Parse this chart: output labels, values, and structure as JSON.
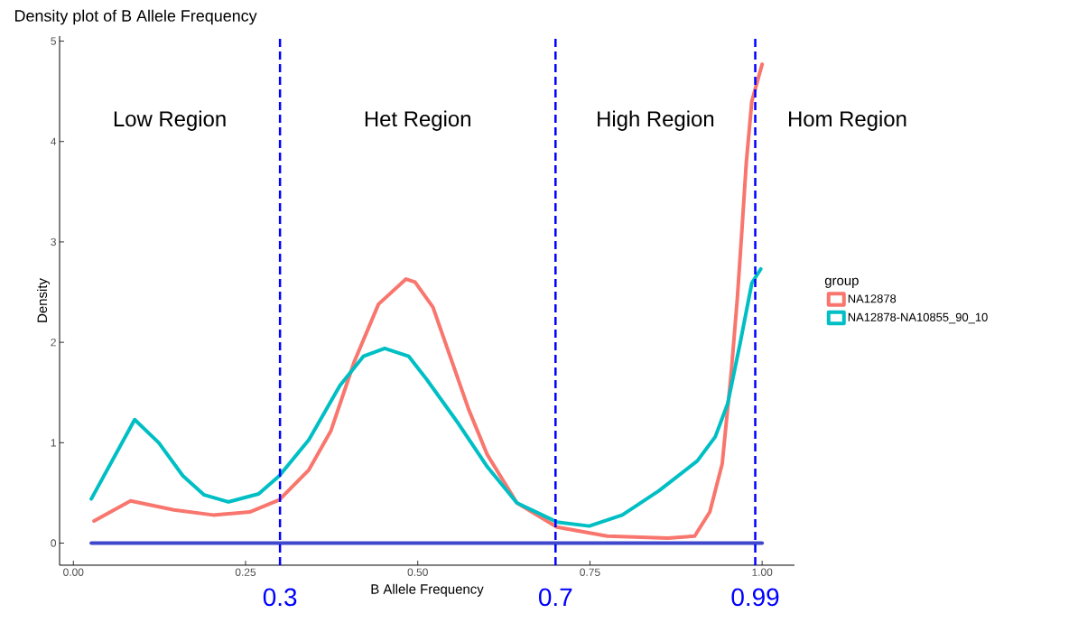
{
  "chart_data": {
    "type": "line",
    "title": "Density plot of B Allele Frequency",
    "xlabel": "B Allele Frequency",
    "ylabel": "Density",
    "legend_title": "group",
    "legend": "right",
    "line_style": "solid",
    "xlim": [
      -0.02,
      1.047
    ],
    "ylim": [
      -0.22,
      5.05
    ],
    "xticks": [
      {
        "value": 0,
        "label": "0.00"
      },
      {
        "value": 0.25,
        "label": "0.25"
      },
      {
        "value": 0.5,
        "label": "0.50"
      },
      {
        "value": 0.75,
        "label": "0.75"
      },
      {
        "value": 1,
        "label": "1.00"
      }
    ],
    "yticks": [
      0,
      1,
      2,
      3,
      4,
      5
    ],
    "series": [
      {
        "name": "NA12878",
        "color": "#f8766d",
        "x": [
          0.03,
          0.083,
          0.146,
          0.203,
          0.256,
          0.299,
          0.342,
          0.374,
          0.408,
          0.443,
          0.483,
          0.496,
          0.522,
          0.548,
          0.574,
          0.601,
          0.644,
          0.702,
          0.775,
          0.863,
          0.902,
          0.924,
          0.942,
          0.955,
          0.964,
          0.97,
          0.977,
          0.985,
          1.0
        ],
        "values": [
          0.22,
          0.42,
          0.33,
          0.28,
          0.31,
          0.43,
          0.73,
          1.12,
          1.81,
          2.38,
          2.63,
          2.6,
          2.35,
          1.84,
          1.33,
          0.88,
          0.4,
          0.16,
          0.07,
          0.05,
          0.07,
          0.31,
          0.79,
          1.69,
          2.44,
          3.05,
          3.79,
          4.4,
          4.77
        ]
      },
      {
        "name": "NA12878-NA10855_90_10",
        "color": "#00bfc4",
        "x": [
          0.026,
          0.089,
          0.124,
          0.159,
          0.19,
          0.225,
          0.269,
          0.299,
          0.342,
          0.387,
          0.421,
          0.452,
          0.487,
          0.513,
          0.557,
          0.601,
          0.644,
          0.702,
          0.749,
          0.797,
          0.85,
          0.906,
          0.932,
          0.95,
          0.968,
          0.985,
          0.998
        ],
        "values": [
          0.44,
          1.23,
          1.0,
          0.67,
          0.48,
          0.41,
          0.49,
          0.67,
          1.03,
          1.57,
          1.86,
          1.94,
          1.86,
          1.63,
          1.21,
          0.76,
          0.4,
          0.21,
          0.17,
          0.28,
          0.52,
          0.82,
          1.06,
          1.39,
          1.99,
          2.59,
          2.73
        ]
      },
      {
        "type": "line",
        "color": "#3f48cc",
        "x": [
          0.026,
          1.0
        ],
        "values": [
          0,
          0
        ]
      }
    ],
    "ref_lines": [
      {
        "axis": "x",
        "value": 0.3,
        "label": "0.3",
        "color": "#0000ff",
        "line_style": "dashed"
      },
      {
        "axis": "x",
        "value": 0.7,
        "label": "0.7",
        "color": "#0000ff",
        "line_style": "dashed"
      },
      {
        "axis": "x",
        "value": 0.99,
        "label": "0.99",
        "color": "#0000ff",
        "line_style": "dashed"
      }
    ],
    "annotations": [
      "Low Region",
      "Het Region",
      "High Region",
      "Hom Region"
    ]
  }
}
